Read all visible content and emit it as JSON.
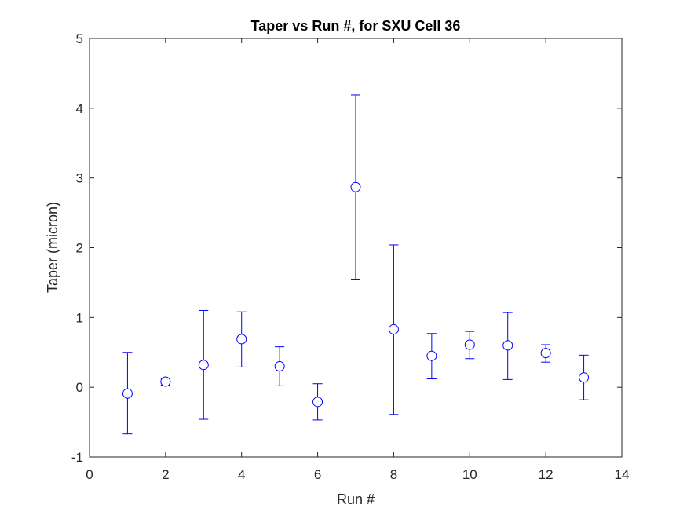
{
  "chart_data": {
    "type": "scatter",
    "title": "Taper vs Run #, for SXU Cell 36",
    "xlabel": "Run #",
    "ylabel": "Taper (micron)",
    "xlim": [
      0,
      14
    ],
    "ylim": [
      -1,
      5
    ],
    "xticks": [
      "0",
      "2",
      "4",
      "6",
      "8",
      "10",
      "12",
      "14"
    ],
    "yticks": [
      "-1",
      "0",
      "1",
      "2",
      "3",
      "4",
      "5"
    ],
    "grid": false,
    "legend": "none",
    "marker": "circle-open",
    "color": "#0000ff",
    "series": [
      {
        "x": [
          1,
          2,
          3,
          4,
          5,
          6,
          7,
          8,
          9,
          10,
          11,
          12,
          13
        ],
        "y": [
          -0.09,
          0.08,
          0.32,
          0.69,
          0.3,
          -0.21,
          2.87,
          0.83,
          0.45,
          0.61,
          0.6,
          0.49,
          0.14
        ],
        "err_low": [
          -0.67,
          0.03,
          -0.46,
          0.29,
          0.02,
          -0.47,
          1.55,
          -0.39,
          0.12,
          0.41,
          0.11,
          0.36,
          -0.18
        ],
        "err_high": [
          0.5,
          0.12,
          1.1,
          1.08,
          0.58,
          0.05,
          4.19,
          2.04,
          0.77,
          0.8,
          1.07,
          0.61,
          0.46
        ]
      }
    ]
  }
}
